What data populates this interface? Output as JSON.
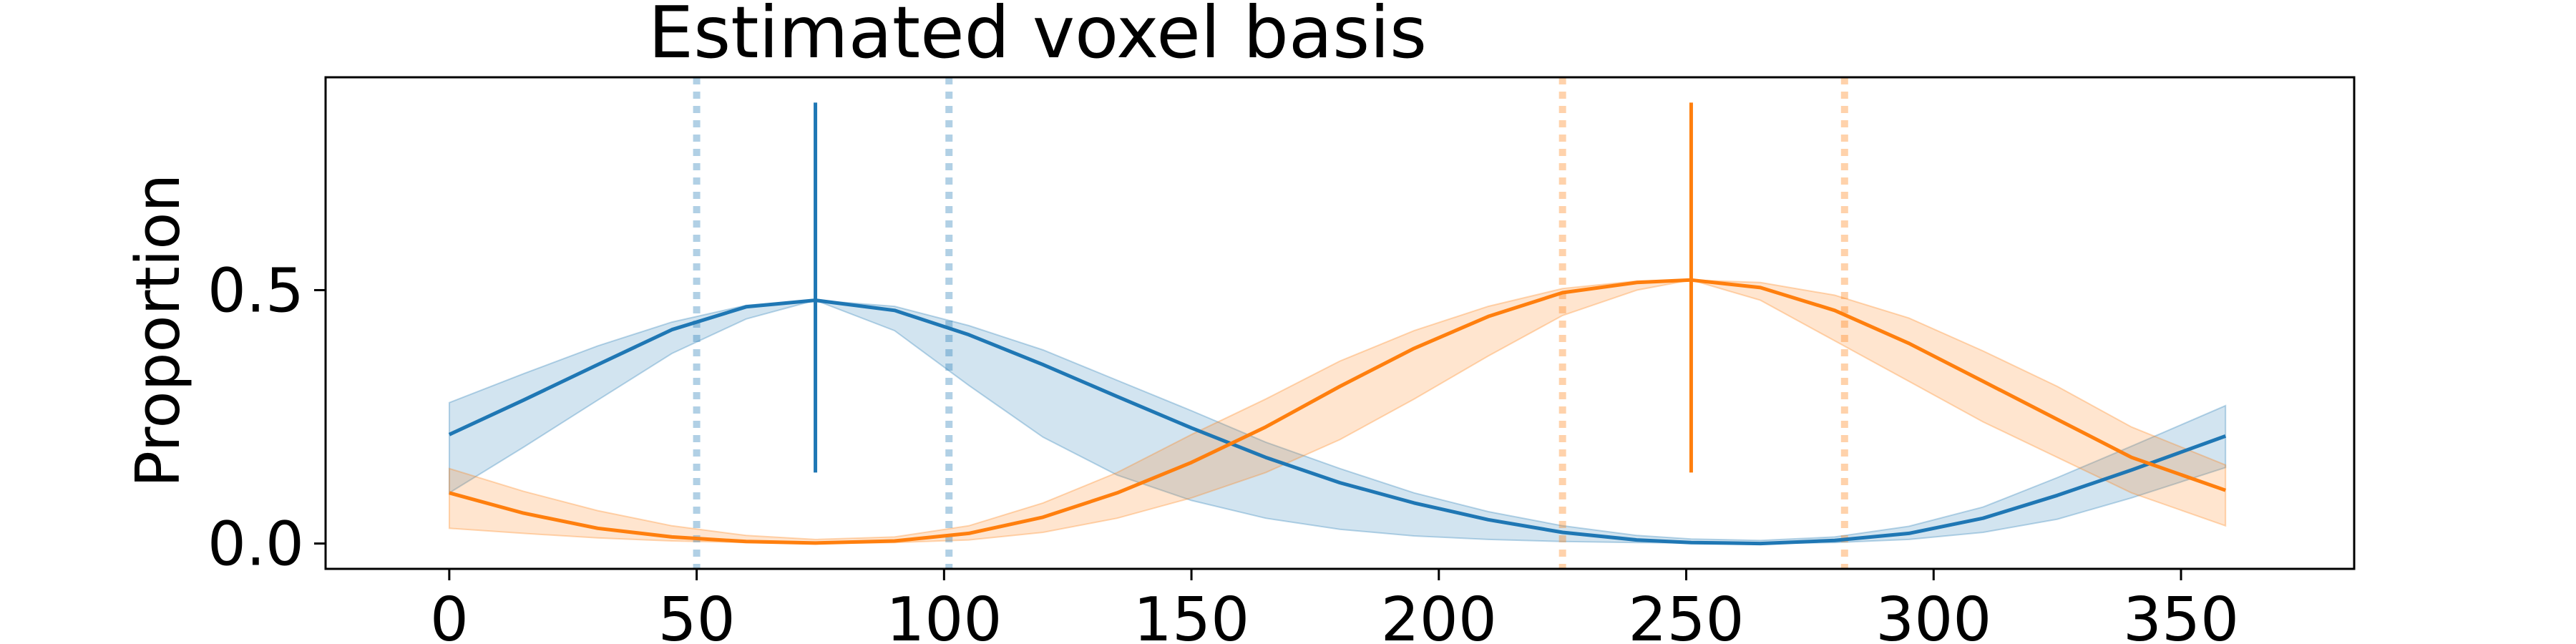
{
  "chart_data": {
    "type": "line",
    "title": "Estimated voxel basis",
    "xlabel": "",
    "ylabel": "Proportion",
    "xlim": [
      -25,
      385
    ],
    "ylim": [
      -0.05,
      0.92
    ],
    "xticks": [
      0,
      50,
      100,
      150,
      200,
      250,
      300,
      350
    ],
    "xtick_labels": [
      "0",
      "50",
      "100",
      "150",
      "200",
      "250",
      "300",
      "350"
    ],
    "yticks": [
      0.0,
      0.5
    ],
    "ytick_labels": [
      "0.0",
      "0.5"
    ],
    "grid": false,
    "legend": "none",
    "x": [
      0,
      15,
      30,
      45,
      60,
      74,
      90,
      105,
      120,
      135,
      150,
      165,
      180,
      195,
      210,
      225,
      240,
      251,
      265,
      280,
      295,
      310,
      325,
      340,
      359
    ],
    "series": [
      {
        "color": "#1f77b4",
        "values": [
          0.215,
          0.283,
          0.353,
          0.422,
          0.467,
          0.48,
          0.46,
          0.412,
          0.353,
          0.29,
          0.228,
          0.17,
          0.12,
          0.08,
          0.047,
          0.022,
          0.007,
          0.002,
          0.0,
          0.006,
          0.02,
          0.05,
          0.095,
          0.145,
          0.212
        ],
        "band_upper": [
          0.278,
          0.335,
          0.39,
          0.437,
          0.47,
          0.48,
          0.468,
          0.43,
          0.382,
          0.322,
          0.262,
          0.2,
          0.148,
          0.1,
          0.063,
          0.035,
          0.016,
          0.009,
          0.006,
          0.013,
          0.034,
          0.072,
          0.13,
          0.192,
          0.272
        ],
        "band_lower": [
          0.1,
          0.19,
          0.283,
          0.375,
          0.443,
          0.48,
          0.42,
          0.312,
          0.21,
          0.135,
          0.085,
          0.05,
          0.028,
          0.015,
          0.008,
          0.004,
          0.002,
          0.001,
          0.0,
          0.002,
          0.008,
          0.022,
          0.048,
          0.09,
          0.15
        ],
        "peak": 74,
        "vline": {
          "x": 74,
          "ymin": 0.14,
          "ymax": 0.87
        },
        "dotted_lines": [
          50,
          101
        ]
      },
      {
        "color": "#ff7f0e",
        "values": [
          0.1,
          0.06,
          0.03,
          0.013,
          0.004,
          0.001,
          0.005,
          0.02,
          0.052,
          0.1,
          0.16,
          0.23,
          0.31,
          0.385,
          0.448,
          0.495,
          0.515,
          0.52,
          0.505,
          0.46,
          0.395,
          0.32,
          0.245,
          0.17,
          0.105
        ],
        "band_upper": [
          0.148,
          0.103,
          0.065,
          0.035,
          0.016,
          0.008,
          0.013,
          0.035,
          0.08,
          0.14,
          0.215,
          0.285,
          0.36,
          0.42,
          0.468,
          0.503,
          0.518,
          0.52,
          0.515,
          0.49,
          0.445,
          0.38,
          0.31,
          0.23,
          0.155
        ],
        "band_lower": [
          0.03,
          0.02,
          0.011,
          0.005,
          0.002,
          0.0,
          0.002,
          0.007,
          0.022,
          0.05,
          0.09,
          0.14,
          0.205,
          0.285,
          0.37,
          0.45,
          0.5,
          0.52,
          0.48,
          0.4,
          0.32,
          0.24,
          0.17,
          0.1,
          0.035
        ],
        "peak": 251,
        "vline": {
          "x": 251,
          "ymin": 0.14,
          "ymax": 0.87
        },
        "dotted_lines": [
          225,
          282
        ]
      }
    ]
  }
}
